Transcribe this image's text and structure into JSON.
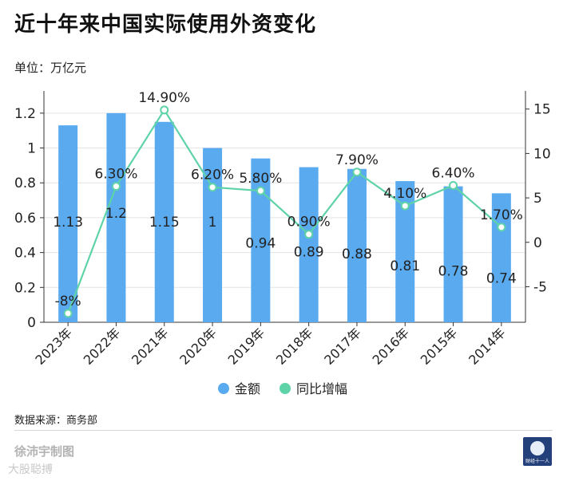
{
  "header": {
    "title": "近十年来中国实际使用外资变化",
    "unit": "单位：万亿元"
  },
  "footer": {
    "source": "数据来源：商务部",
    "author": "徐沛宇制图",
    "watermark": "大股聪搏",
    "logo_text": "财经十一人"
  },
  "colors": {
    "bar": "#5aaaf0",
    "line": "#5ed3a7",
    "marker_fill": "#ffffff",
    "grid": "#e4e4e4",
    "axis": "#333333"
  },
  "chart_data": {
    "type": "bar+line",
    "categories": [
      "2023年",
      "2022年",
      "2021年",
      "2020年",
      "2019年",
      "2018年",
      "2017年",
      "2016年",
      "2015年",
      "2014年"
    ],
    "series": [
      {
        "name": "金额",
        "type": "bar",
        "axis": "left",
        "values": [
          1.13,
          1.2,
          1.15,
          1,
          0.94,
          0.89,
          0.88,
          0.81,
          0.78,
          0.74
        ],
        "labels": [
          "1.13",
          "1.2",
          "1.15",
          "1",
          "0.94",
          "0.89",
          "0.88",
          "0.81",
          "0.78",
          "0.74"
        ]
      },
      {
        "name": "同比增幅",
        "type": "line",
        "axis": "right",
        "values": [
          -8,
          6.3,
          14.9,
          6.2,
          5.8,
          0.9,
          7.9,
          4.1,
          6.4,
          1.7
        ],
        "labels": [
          "-8%",
          "6.30%",
          "14.90%",
          "6.20%",
          "5.80%",
          "0.90%",
          "7.90%",
          "4.10%",
          "6.40%",
          "1.70%"
        ]
      }
    ],
    "left_axis": {
      "range": [
        0,
        1.3
      ],
      "ticks": [
        0,
        0.2,
        0.4,
        0.6,
        0.8,
        1,
        1.2
      ],
      "tick_labels": [
        "0",
        "0.2",
        "0.4",
        "0.6",
        "0.8",
        "1",
        "1.2"
      ]
    },
    "right_axis": {
      "range": [
        -9,
        16.5
      ],
      "ticks": [
        -5,
        0,
        5,
        10,
        15
      ],
      "tick_labels": [
        "-5",
        "0",
        "5",
        "10",
        "15"
      ]
    },
    "grid": true,
    "legend": {
      "position": "bottom",
      "items": [
        "金额",
        "同比增幅"
      ]
    }
  }
}
